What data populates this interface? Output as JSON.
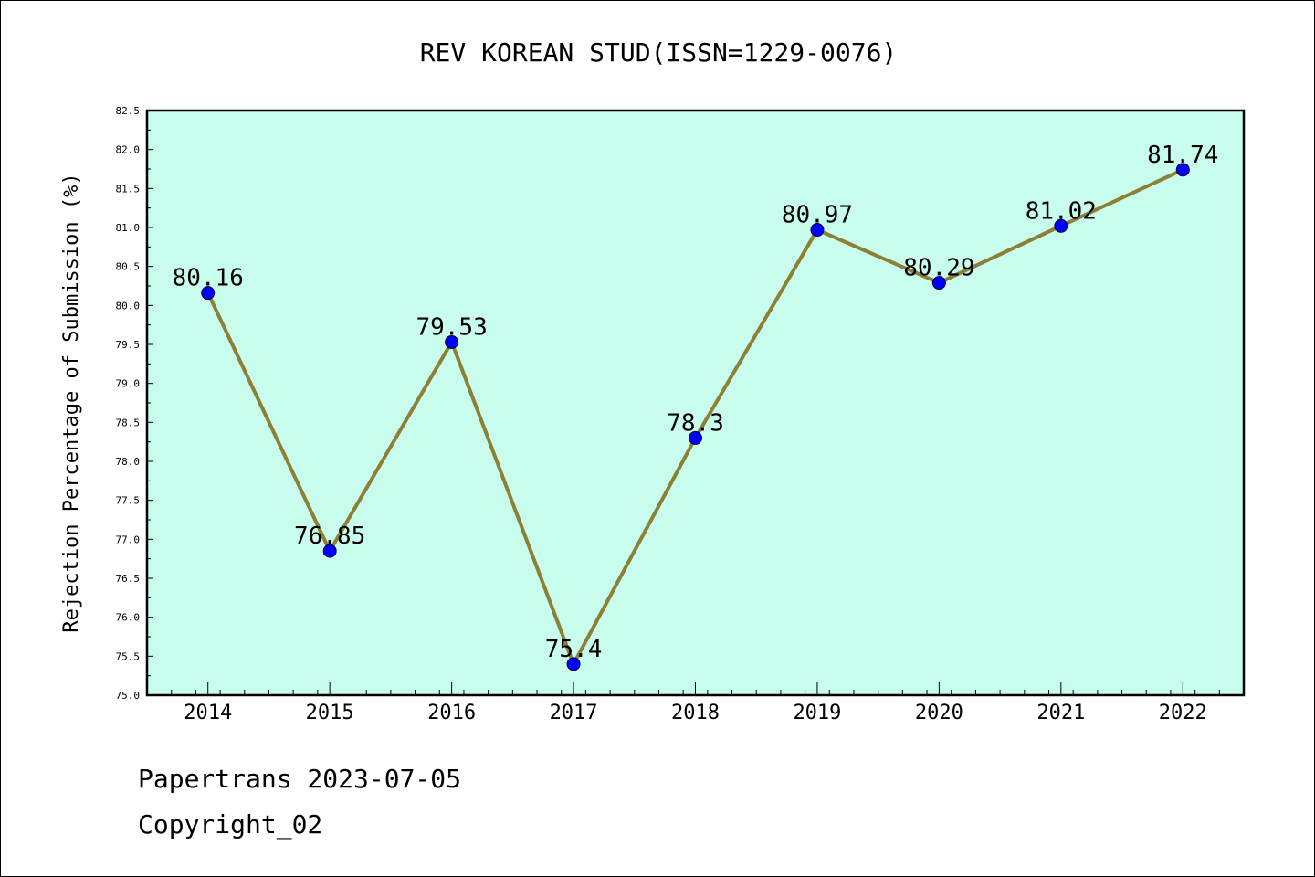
{
  "chart_data": {
    "type": "line",
    "title": "REV KOREAN STUD(ISSN=1229-0076)",
    "ylabel": "Rejection Percentage of Submission (%)",
    "xlabel": "",
    "categories": [
      "2014",
      "2015",
      "2016",
      "2017",
      "2018",
      "2019",
      "2020",
      "2021",
      "2022"
    ],
    "series": [
      {
        "values": [
          80.16,
          76.85,
          79.53,
          75.4,
          78.3,
          80.97,
          80.29,
          81.02,
          81.74
        ],
        "labels": [
          "80.16",
          "76.85",
          "79.53",
          "75.4",
          "78.3",
          "80.97",
          "80.29",
          "81.02",
          "81.74"
        ]
      }
    ],
    "ylim": [
      75.0,
      82.5
    ],
    "yticks": [
      "75.0",
      "75.5",
      "76.0",
      "76.5",
      "77.0",
      "77.5",
      "78.0",
      "78.5",
      "79.0",
      "79.5",
      "80.0",
      "80.5",
      "81.0",
      "81.5",
      "82.0",
      "82.5"
    ],
    "grid": false,
    "colors": {
      "plot_background": "#c8fcec",
      "line": "#8b8035",
      "marker": "#0000ff"
    }
  },
  "footer": {
    "line1": "Papertrans 2023-07-05",
    "line2": "Copyright_02"
  }
}
